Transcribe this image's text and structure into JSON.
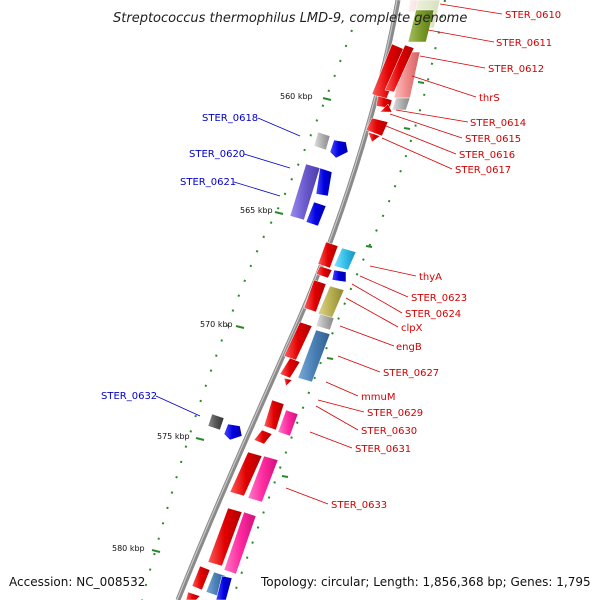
{
  "title": "Streptococcus thermophilus LMD-9, complete genome",
  "footer": {
    "accession": "Accession: NC_008532",
    "summary": "Topology: circular; Length: 1,856,368 bp; Genes: 1,795"
  },
  "ruler": [
    "560 kbp",
    "565 kbp",
    "570 kbp",
    "575 kbp",
    "580 kbp"
  ],
  "labels_right": [
    "STER_0610",
    "STER_0611",
    "STER_0612",
    "thrS",
    "STER_0614",
    "STER_0615",
    "STER_0616",
    "STER_0617",
    "thyA",
    "STER_0623",
    "STER_0624",
    "clpX",
    "engB",
    "STER_0627",
    "mmuM",
    "STER_0629",
    "STER_0630",
    "STER_0631",
    "STER_0633"
  ],
  "labels_left": [
    "STER_0618",
    "STER_0620",
    "STER_0621",
    "STER_0632"
  ],
  "colors": {
    "forward_gene": "#e00000",
    "reverse_gene": "#0000e0",
    "rna_like": "#ff2aa0",
    "steel_blue": "#4a7fb5",
    "olive": "#b8b050",
    "purple": "#6a5acd",
    "grey": "#b0b0b0",
    "dark_grey": "#555555",
    "cyan": "#33c0e8",
    "backbone": "#888888",
    "tick_green": "#2a8a2a",
    "label_red": "#d40000",
    "label_blue": "#0000c8"
  }
}
